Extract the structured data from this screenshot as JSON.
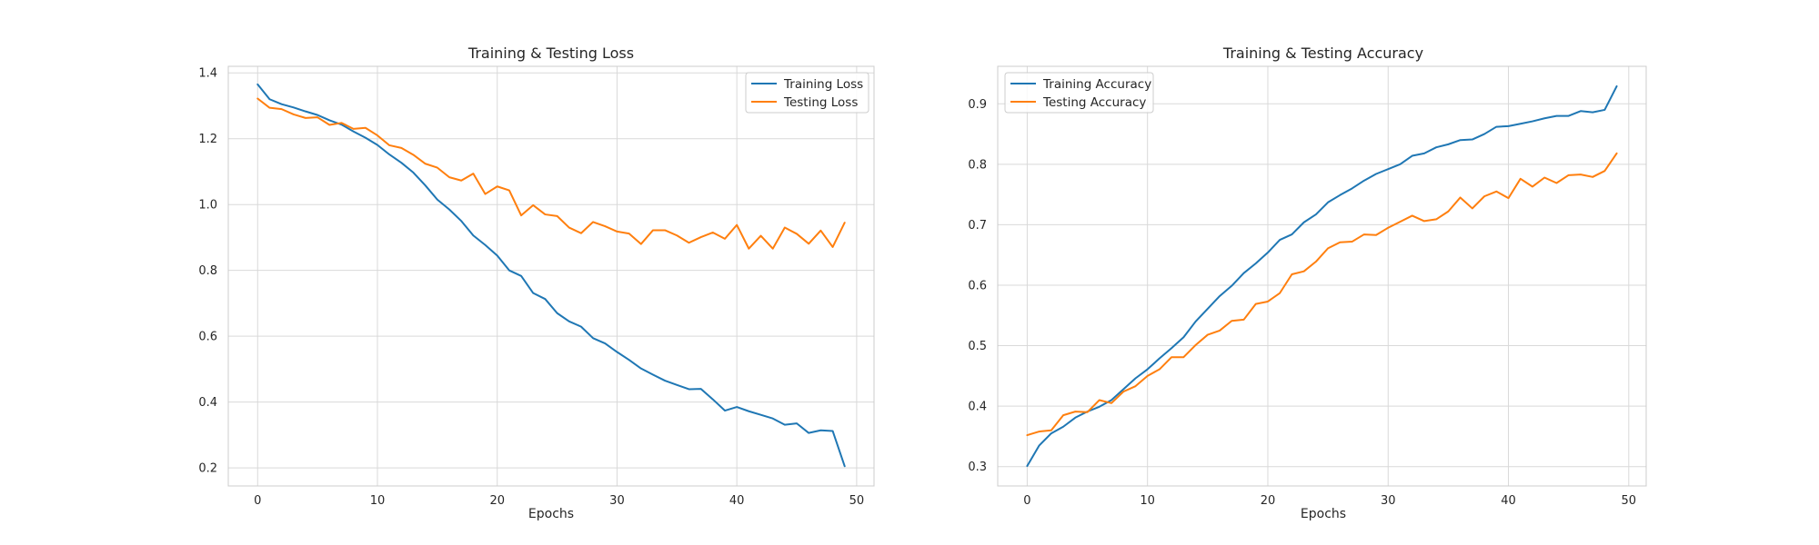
{
  "chart_data": [
    {
      "type": "line",
      "title": "Training & Testing Loss",
      "xlabel": "Epochs",
      "ylabel": "",
      "xlim": [
        -2.45,
        51.45
      ],
      "ylim": [
        0.145,
        1.42
      ],
      "xticks": [
        0,
        10,
        20,
        30,
        40,
        50
      ],
      "yticks": [
        0.2,
        0.4,
        0.6,
        0.8,
        1.0,
        1.2,
        1.4
      ],
      "ytick_labels": [
        "0.2",
        "0.4",
        "0.6",
        "0.8",
        "1.0",
        "1.2",
        "1.4"
      ],
      "grid": true,
      "legend_position": "top-right",
      "x": [
        0,
        1,
        2,
        3,
        4,
        5,
        6,
        7,
        8,
        9,
        10,
        11,
        12,
        13,
        14,
        15,
        16,
        17,
        18,
        19,
        20,
        21,
        22,
        23,
        24,
        25,
        26,
        27,
        28,
        29,
        30,
        31,
        32,
        33,
        34,
        35,
        36,
        37,
        38,
        39,
        40,
        41,
        42,
        43,
        44,
        45,
        46,
        47,
        48,
        49
      ],
      "series": [
        {
          "name": "Training Loss",
          "color": "#1f77b4",
          "values": [
            1.365,
            1.32,
            1.305,
            1.295,
            1.283,
            1.272,
            1.256,
            1.243,
            1.222,
            1.203,
            1.181,
            1.152,
            1.127,
            1.097,
            1.058,
            1.015,
            0.985,
            0.95,
            0.906,
            0.877,
            0.845,
            0.8,
            0.783,
            0.731,
            0.713,
            0.67,
            0.645,
            0.629,
            0.594,
            0.578,
            0.552,
            0.528,
            0.502,
            0.483,
            0.465,
            0.452,
            0.439,
            0.44,
            0.408,
            0.374,
            0.385,
            0.372,
            0.361,
            0.35,
            0.331,
            0.335,
            0.306,
            0.314,
            0.312,
            0.205
          ]
        },
        {
          "name": "Testing Loss",
          "color": "#ff7f0e",
          "values": [
            1.322,
            1.294,
            1.29,
            1.274,
            1.263,
            1.265,
            1.242,
            1.248,
            1.23,
            1.233,
            1.21,
            1.18,
            1.172,
            1.151,
            1.124,
            1.112,
            1.083,
            1.073,
            1.094,
            1.032,
            1.055,
            1.043,
            0.967,
            0.998,
            0.97,
            0.965,
            0.93,
            0.913,
            0.947,
            0.934,
            0.918,
            0.912,
            0.88,
            0.922,
            0.922,
            0.906,
            0.884,
            0.901,
            0.915,
            0.896,
            0.938,
            0.866,
            0.905,
            0.866,
            0.93,
            0.911,
            0.881,
            0.921,
            0.871,
            0.945
          ]
        }
      ]
    },
    {
      "type": "line",
      "title": "Training & Testing Accuracy",
      "xlabel": "Epochs",
      "ylabel": "",
      "xlim": [
        -2.45,
        51.45
      ],
      "ylim": [
        0.268,
        0.962
      ],
      "xticks": [
        0,
        10,
        20,
        30,
        40,
        50
      ],
      "yticks": [
        0.3,
        0.4,
        0.5,
        0.6,
        0.7,
        0.8,
        0.9
      ],
      "ytick_labels": [
        "0.3",
        "0.4",
        "0.5",
        "0.6",
        "0.7",
        "0.8",
        "0.9"
      ],
      "grid": true,
      "legend_position": "top-left",
      "x": [
        0,
        1,
        2,
        3,
        4,
        5,
        6,
        7,
        8,
        9,
        10,
        11,
        12,
        13,
        14,
        15,
        16,
        17,
        18,
        19,
        20,
        21,
        22,
        23,
        24,
        25,
        26,
        27,
        28,
        29,
        30,
        31,
        32,
        33,
        34,
        35,
        36,
        37,
        38,
        39,
        40,
        41,
        42,
        43,
        44,
        45,
        46,
        47,
        48,
        49
      ],
      "series": [
        {
          "name": "Training Accuracy",
          "color": "#1f77b4",
          "values": [
            0.301,
            0.335,
            0.355,
            0.366,
            0.381,
            0.391,
            0.399,
            0.41,
            0.428,
            0.446,
            0.461,
            0.479,
            0.496,
            0.514,
            0.54,
            0.561,
            0.582,
            0.599,
            0.62,
            0.636,
            0.654,
            0.675,
            0.684,
            0.704,
            0.717,
            0.737,
            0.749,
            0.76,
            0.773,
            0.784,
            0.792,
            0.8,
            0.814,
            0.818,
            0.828,
            0.833,
            0.84,
            0.841,
            0.85,
            0.862,
            0.863,
            0.867,
            0.871,
            0.876,
            0.88,
            0.88,
            0.888,
            0.886,
            0.89,
            0.929
          ]
        },
        {
          "name": "Testing Accuracy",
          "color": "#ff7f0e",
          "values": [
            0.352,
            0.358,
            0.36,
            0.385,
            0.391,
            0.39,
            0.41,
            0.405,
            0.424,
            0.433,
            0.45,
            0.461,
            0.481,
            0.481,
            0.501,
            0.518,
            0.525,
            0.541,
            0.543,
            0.569,
            0.573,
            0.587,
            0.618,
            0.623,
            0.639,
            0.661,
            0.671,
            0.672,
            0.684,
            0.683,
            0.695,
            0.705,
            0.715,
            0.706,
            0.709,
            0.722,
            0.745,
            0.727,
            0.747,
            0.755,
            0.744,
            0.776,
            0.763,
            0.778,
            0.769,
            0.782,
            0.783,
            0.779,
            0.789,
            0.818
          ]
        }
      ]
    }
  ]
}
